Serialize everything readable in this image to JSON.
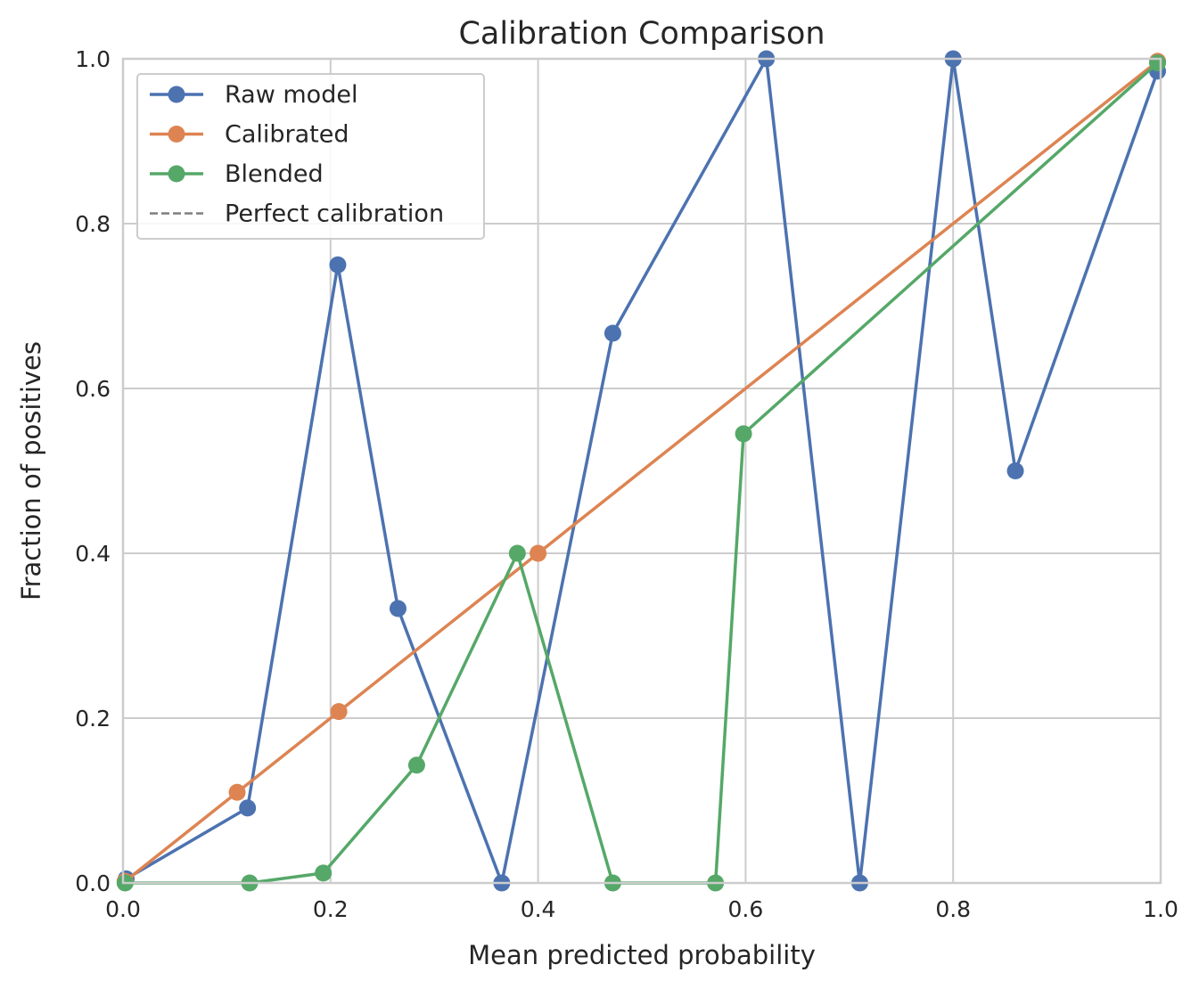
{
  "chart_data": {
    "type": "line",
    "title": "Calibration Comparison",
    "xlabel": "Mean predicted probability",
    "ylabel": "Fraction of positives",
    "xlim": [
      0.0,
      1.0
    ],
    "ylim": [
      0.0,
      1.0
    ],
    "xticks": [
      "0.0",
      "0.2",
      "0.4",
      "0.6",
      "0.8",
      "1.0"
    ],
    "yticks": [
      "0.0",
      "0.2",
      "0.4",
      "0.6",
      "0.8",
      "1.0"
    ],
    "grid": true,
    "legend_position": "top-left",
    "series": [
      {
        "name": "Raw model",
        "color": "#4c72b0",
        "marker": "circle",
        "style": "solid",
        "x": [
          0.003,
          0.12,
          0.207,
          0.265,
          0.365,
          0.472,
          0.62,
          0.71,
          0.8,
          0.86,
          0.997
        ],
        "y": [
          0.005,
          0.091,
          0.75,
          0.333,
          0.0,
          0.667,
          1.0,
          0.0,
          1.0,
          0.5,
          0.985
        ]
      },
      {
        "name": "Calibrated",
        "color": "#dd8452",
        "marker": "circle",
        "style": "solid",
        "x": [
          0.002,
          0.11,
          0.208,
          0.4,
          0.997
        ],
        "y": [
          0.002,
          0.11,
          0.208,
          0.4,
          0.997
        ]
      },
      {
        "name": "Blended",
        "color": "#55a868",
        "marker": "circle",
        "style": "solid",
        "x": [
          0.002,
          0.122,
          0.193,
          0.283,
          0.38,
          0.472,
          0.571,
          0.598,
          0.997
        ],
        "y": [
          0.0,
          0.0,
          0.012,
          0.143,
          0.4,
          0.0,
          0.0,
          0.545,
          0.995
        ]
      },
      {
        "name": "Perfect calibration",
        "color": "#7f7f7f",
        "marker": "none",
        "style": "dashed",
        "x": [
          0.0,
          1.0
        ],
        "y": [
          0.0,
          1.0
        ]
      }
    ]
  }
}
